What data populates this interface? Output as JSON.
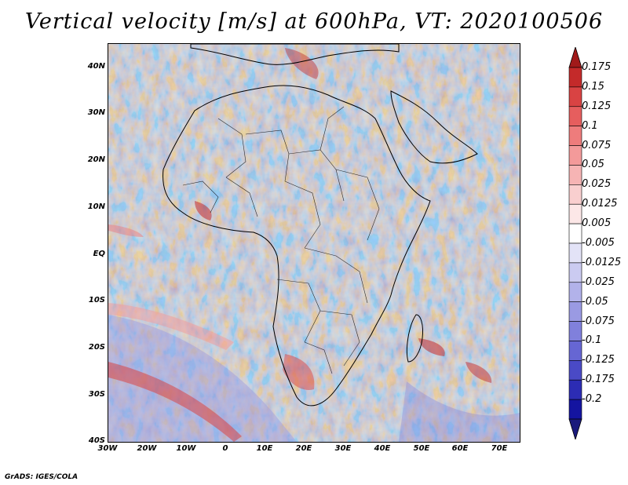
{
  "title": "Vertical velocity [m/s] at 600hPa, VT: 2020100506",
  "footer": "GrADS: IGES/COLA",
  "map": {
    "lon_range": [
      -30,
      75
    ],
    "lat_range": [
      -40,
      45
    ],
    "lat_ticks": [
      {
        "value": 40,
        "label": "40N"
      },
      {
        "value": 30,
        "label": "30N"
      },
      {
        "value": 20,
        "label": "20N"
      },
      {
        "value": 10,
        "label": "10N"
      },
      {
        "value": 0,
        "label": "EQ"
      },
      {
        "value": -10,
        "label": "10S"
      },
      {
        "value": -20,
        "label": "20S"
      },
      {
        "value": -30,
        "label": "30S"
      },
      {
        "value": -40,
        "label": "40S"
      }
    ],
    "lon_ticks": [
      {
        "value": -30,
        "label": "30W"
      },
      {
        "value": -20,
        "label": "20W"
      },
      {
        "value": -10,
        "label": "10W"
      },
      {
        "value": 0,
        "label": "0"
      },
      {
        "value": 10,
        "label": "10E"
      },
      {
        "value": 20,
        "label": "20E"
      },
      {
        "value": 30,
        "label": "30E"
      },
      {
        "value": 40,
        "label": "40E"
      },
      {
        "value": 50,
        "label": "50E"
      },
      {
        "value": 60,
        "label": "60E"
      },
      {
        "value": 70,
        "label": "70E"
      }
    ]
  },
  "colorbar": {
    "colors": [
      "#a11a1a",
      "#c42a2a",
      "#d94343",
      "#e65e5e",
      "#ee7c7c",
      "#f39a9a",
      "#f6b4b4",
      "#f9cfcf",
      "#fce7e7",
      "#ffffff",
      "#e3e3f7",
      "#cbcbf1",
      "#b2b2ea",
      "#9a9ae3",
      "#8080dc",
      "#6666d3",
      "#4a4ac6",
      "#2c2cb4",
      "#1414a0",
      "#1a1a7c"
    ],
    "labels": [
      "0.175",
      "0.15",
      "0.125",
      "0.1",
      "0.075",
      "0.05",
      "0.025",
      "0.0125",
      "0.005",
      "-0.005",
      "-0.0125",
      "-0.025",
      "-0.05",
      "-0.075",
      "-0.1",
      "-0.125",
      "-0.175",
      "-0.2"
    ]
  }
}
